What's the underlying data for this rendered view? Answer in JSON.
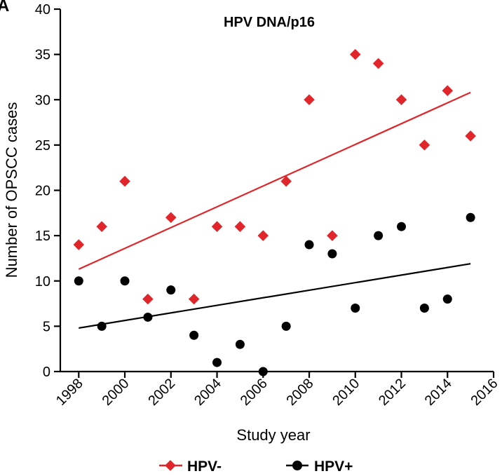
{
  "panel_label": "A",
  "chart_data": {
    "type": "scatter",
    "title": "HPV DNA/p16",
    "xlabel": "Study year",
    "ylabel": "Number of OPSCC cases",
    "xlim": [
      1997.2,
      2016
    ],
    "ylim": [
      0,
      40
    ],
    "x_ticks": [
      1998,
      2000,
      2002,
      2004,
      2006,
      2008,
      2010,
      2012,
      2014,
      2016
    ],
    "y_ticks": [
      0,
      5,
      10,
      15,
      20,
      25,
      30,
      35,
      40
    ],
    "grid": false,
    "legend_position": "bottom",
    "series": [
      {
        "name": "HPV-",
        "marker": "diamond",
        "color": "#e0262b",
        "x": [
          1998,
          1999,
          2000,
          2001,
          2002,
          2003,
          2004,
          2005,
          2006,
          2007,
          2008,
          2009,
          2010,
          2011,
          2012,
          2013,
          2014,
          2015
        ],
        "y": [
          14,
          16,
          21,
          8,
          17,
          8,
          16,
          16,
          15,
          21,
          30,
          15,
          35,
          34,
          30,
          25,
          31,
          26
        ],
        "trend": [
          [
            1998,
            11.3
          ],
          [
            2015,
            30.8
          ]
        ]
      },
      {
        "name": "HPV+",
        "marker": "circle",
        "color": "#000000",
        "x": [
          1998,
          1999,
          2000,
          2001,
          2002,
          2003,
          2004,
          2005,
          2006,
          2007,
          2008,
          2009,
          2010,
          2011,
          2012,
          2013,
          2014,
          2015
        ],
        "y": [
          10,
          5,
          10,
          6,
          9,
          4,
          1,
          3,
          0,
          5,
          14,
          13,
          7,
          15,
          16,
          7,
          8,
          17
        ],
        "trend": [
          [
            1998,
            4.8
          ],
          [
            2015,
            11.9
          ]
        ]
      }
    ]
  }
}
